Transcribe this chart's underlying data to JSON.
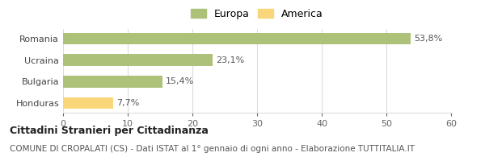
{
  "categories": [
    "Honduras",
    "Bulgaria",
    "Ucraina",
    "Romania"
  ],
  "values": [
    7.7,
    15.4,
    23.1,
    53.8
  ],
  "labels": [
    "7,7%",
    "15,4%",
    "23,1%",
    "53,8%"
  ],
  "bar_colors": [
    "#f9d67a",
    "#adc178",
    "#adc178",
    "#adc178"
  ],
  "legend": [
    {
      "label": "Europa",
      "color": "#adc178"
    },
    {
      "label": "America",
      "color": "#f9d67a"
    }
  ],
  "xlim": [
    0,
    60
  ],
  "xticks": [
    0,
    10,
    20,
    30,
    40,
    50,
    60
  ],
  "title_bold": "Cittadini Stranieri per Cittadinanza",
  "subtitle": "COMUNE DI CROPALATI (CS) - Dati ISTAT al 1° gennaio di ogni anno - Elaborazione TUTTITALIA.IT",
  "background_color": "#ffffff",
  "bar_edge_color": "none",
  "grid_color": "#dddddd",
  "title_fontsize": 9,
  "subtitle_fontsize": 7.5,
  "label_fontsize": 8,
  "tick_fontsize": 8,
  "legend_fontsize": 9
}
